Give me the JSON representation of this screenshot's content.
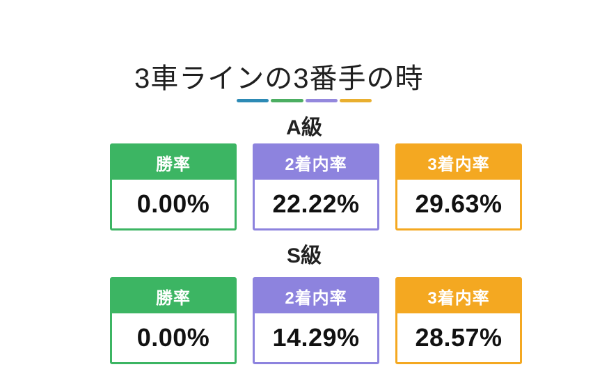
{
  "title": "3車ラインの3番手の時",
  "divider": {
    "colors": [
      "#2d8ab5",
      "#4cae62",
      "#9488dd",
      "#e9af2f"
    ]
  },
  "sections": [
    {
      "heading": "A級",
      "cards": [
        {
          "label": "勝率",
          "value": "0.00%",
          "color": "#3cb563"
        },
        {
          "label": "2着内率",
          "value": "22.22%",
          "color": "#8d83de"
        },
        {
          "label": "3着内率",
          "value": "29.63%",
          "color": "#f4a821"
        }
      ]
    },
    {
      "heading": "S級",
      "cards": [
        {
          "label": "勝率",
          "value": "0.00%",
          "color": "#3cb563"
        },
        {
          "label": "2着内率",
          "value": "14.29%",
          "color": "#8d83de"
        },
        {
          "label": "3着内率",
          "value": "28.57%",
          "color": "#f4a821"
        }
      ]
    }
  ],
  "chart_data": {
    "type": "table",
    "title": "3車ラインの3番手の時",
    "groups": [
      "A級",
      "S級"
    ],
    "metrics": [
      "勝率",
      "2着内率",
      "3着内率"
    ],
    "series": [
      {
        "name": "A級",
        "values": [
          0.0,
          22.22,
          29.63
        ]
      },
      {
        "name": "S級",
        "values": [
          0.0,
          14.29,
          28.57
        ]
      }
    ],
    "unit": "%"
  }
}
